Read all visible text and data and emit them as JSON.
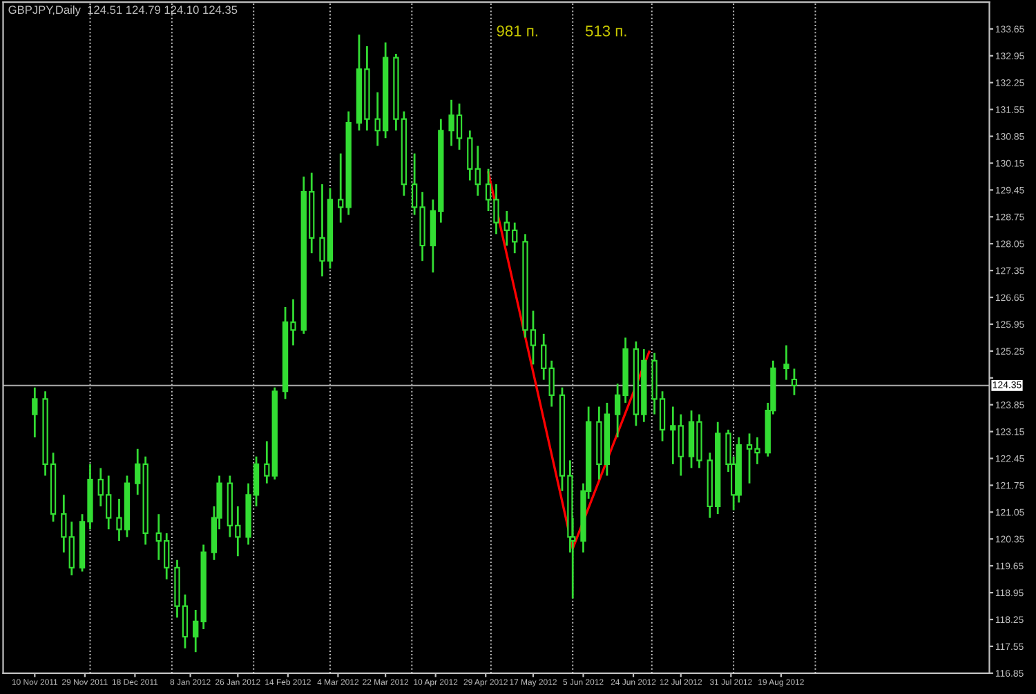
{
  "chart_data": {
    "type": "candlestick",
    "title": "GBPJPY,Daily  124.51 124.79 124.10 124.35",
    "x": [
      "2011-11-10",
      "2011-11-14",
      "2011-11-17",
      "2011-11-21",
      "2011-11-24",
      "2011-11-28",
      "2011-12-01",
      "2011-12-05",
      "2011-12-08",
      "2011-12-12",
      "2011-12-15",
      "2011-12-19",
      "2011-12-22",
      "2011-12-27",
      "2011-12-30",
      "2012-01-03",
      "2012-01-06",
      "2012-01-10",
      "2012-01-13",
      "2012-01-17",
      "2012-01-19",
      "2012-01-23",
      "2012-01-26",
      "2012-01-30",
      "2012-02-02",
      "2012-02-06",
      "2012-02-09",
      "2012-02-13",
      "2012-02-16",
      "2012-02-20",
      "2012-02-23",
      "2012-02-27",
      "2012-03-01",
      "2012-03-05",
      "2012-03-08",
      "2012-03-12",
      "2012-03-15",
      "2012-03-19",
      "2012-03-22",
      "2012-03-26",
      "2012-03-29",
      "2012-04-02",
      "2012-04-05",
      "2012-04-09",
      "2012-04-12",
      "2012-04-16",
      "2012-04-19",
      "2012-04-23",
      "2012-04-26",
      "2012-04-30",
      "2012-05-03",
      "2012-05-07",
      "2012-05-10",
      "2012-05-14",
      "2012-05-17",
      "2012-05-21",
      "2012-05-24",
      "2012-05-28",
      "2012-05-31",
      "2012-06-01",
      "2012-06-05",
      "2012-06-07",
      "2012-06-11",
      "2012-06-14",
      "2012-06-18",
      "2012-06-21",
      "2012-06-25",
      "2012-06-28",
      "2012-07-02",
      "2012-07-05",
      "2012-07-09",
      "2012-07-12",
      "2012-07-16",
      "2012-07-19",
      "2012-07-23",
      "2012-07-26",
      "2012-07-30",
      "2012-08-01",
      "2012-08-03",
      "2012-08-07",
      "2012-08-10",
      "2012-08-14",
      "2012-08-16",
      "2012-08-21",
      "2012-08-24"
    ],
    "ohlc": [
      [
        123.6,
        124.3,
        123.0,
        124.0
      ],
      [
        124.0,
        124.2,
        122.0,
        122.3
      ],
      [
        122.3,
        122.6,
        120.8,
        121.0
      ],
      [
        121.0,
        121.5,
        120.0,
        120.4
      ],
      [
        120.4,
        120.8,
        119.4,
        119.6
      ],
      [
        119.6,
        121.0,
        119.5,
        120.8
      ],
      [
        120.8,
        122.3,
        120.6,
        121.9
      ],
      [
        121.9,
        122.2,
        121.2,
        121.5
      ],
      [
        121.5,
        122.0,
        120.6,
        120.9
      ],
      [
        120.9,
        121.4,
        120.3,
        120.6
      ],
      [
        120.6,
        122.0,
        120.4,
        121.8
      ],
      [
        121.8,
        122.7,
        121.5,
        122.3
      ],
      [
        122.3,
        122.5,
        120.2,
        120.5
      ],
      [
        120.5,
        121.0,
        119.8,
        120.3
      ],
      [
        120.3,
        120.5,
        119.3,
        119.6
      ],
      [
        119.6,
        119.8,
        118.3,
        118.6
      ],
      [
        118.6,
        118.9,
        117.5,
        117.8
      ],
      [
        117.8,
        118.5,
        117.4,
        118.2
      ],
      [
        118.2,
        120.2,
        118.0,
        120.0
      ],
      [
        120.0,
        121.2,
        119.8,
        120.9
      ],
      [
        120.9,
        122.0,
        120.6,
        121.8
      ],
      [
        121.8,
        122.0,
        120.4,
        120.7
      ],
      [
        120.7,
        121.2,
        119.9,
        120.4
      ],
      [
        120.4,
        121.8,
        120.2,
        121.5
      ],
      [
        121.5,
        122.5,
        121.2,
        122.3
      ],
      [
        122.3,
        122.9,
        121.8,
        122.0
      ],
      [
        122.0,
        124.3,
        121.9,
        124.2
      ],
      [
        124.2,
        126.4,
        124.0,
        126.0
      ],
      [
        126.0,
        126.6,
        125.4,
        125.8
      ],
      [
        125.8,
        129.8,
        125.7,
        129.4
      ],
      [
        129.4,
        129.9,
        127.8,
        128.2
      ],
      [
        128.2,
        129.6,
        127.2,
        127.6
      ],
      [
        127.6,
        129.5,
        127.4,
        129.2
      ],
      [
        129.2,
        130.4,
        128.6,
        129.0
      ],
      [
        129.0,
        131.5,
        128.8,
        131.2
      ],
      [
        131.2,
        133.5,
        131.0,
        132.6
      ],
      [
        132.6,
        133.2,
        131.0,
        131.3
      ],
      [
        131.3,
        132.0,
        130.6,
        131.0
      ],
      [
        131.0,
        133.3,
        130.8,
        132.9
      ],
      [
        132.9,
        133.0,
        131.0,
        131.3
      ],
      [
        131.3,
        131.5,
        129.3,
        129.6
      ],
      [
        129.6,
        130.4,
        128.8,
        129.0
      ],
      [
        129.0,
        129.4,
        127.6,
        128.0
      ],
      [
        128.0,
        129.2,
        127.3,
        128.9
      ],
      [
        128.9,
        131.3,
        128.6,
        131.0
      ],
      [
        131.0,
        131.8,
        130.6,
        131.4
      ],
      [
        131.4,
        131.7,
        130.5,
        130.8
      ],
      [
        130.8,
        131.0,
        129.7,
        130.0
      ],
      [
        130.0,
        130.6,
        129.3,
        129.6
      ],
      [
        129.6,
        130.0,
        128.9,
        129.2
      ],
      [
        129.2,
        129.6,
        128.3,
        128.6
      ],
      [
        128.6,
        128.9,
        128.0,
        128.4
      ],
      [
        128.4,
        128.6,
        127.8,
        128.1
      ],
      [
        128.1,
        128.3,
        125.6,
        125.8
      ],
      [
        125.8,
        126.3,
        124.9,
        125.4
      ],
      [
        125.4,
        125.7,
        124.5,
        124.8
      ],
      [
        124.8,
        125.0,
        123.8,
        124.1
      ],
      [
        124.1,
        124.3,
        121.6,
        122.0
      ],
      [
        122.0,
        122.4,
        120.0,
        120.4
      ],
      [
        120.4,
        120.9,
        118.8,
        120.3
      ],
      [
        120.3,
        121.8,
        120.0,
        121.6
      ],
      [
        121.6,
        123.8,
        121.4,
        123.4
      ],
      [
        123.4,
        123.8,
        121.9,
        122.3
      ],
      [
        122.3,
        123.9,
        122.0,
        123.6
      ],
      [
        123.6,
        124.4,
        123.0,
        124.1
      ],
      [
        124.1,
        125.6,
        123.9,
        125.3
      ],
      [
        125.3,
        125.5,
        123.3,
        123.6
      ],
      [
        123.6,
        125.3,
        123.4,
        125.0
      ],
      [
        125.0,
        125.2,
        123.6,
        124.0
      ],
      [
        124.0,
        124.2,
        122.9,
        123.2
      ],
      [
        123.2,
        123.8,
        122.3,
        123.3
      ],
      [
        123.3,
        123.6,
        122.0,
        122.5
      ],
      [
        122.5,
        123.7,
        122.2,
        123.4
      ],
      [
        123.4,
        123.6,
        122.2,
        122.4
      ],
      [
        122.4,
        122.6,
        120.9,
        121.2
      ],
      [
        121.2,
        123.4,
        121.0,
        123.1
      ],
      [
        123.1,
        123.2,
        122.1,
        122.3
      ],
      [
        122.3,
        122.5,
        121.1,
        121.5
      ],
      [
        121.5,
        123.0,
        121.3,
        122.8
      ],
      [
        122.8,
        123.1,
        121.8,
        122.7
      ],
      [
        122.7,
        123.0,
        122.3,
        122.6
      ],
      [
        122.6,
        123.9,
        122.5,
        123.7
      ],
      [
        123.7,
        125.0,
        123.6,
        124.8
      ],
      [
        124.8,
        125.4,
        124.5,
        124.9
      ],
      [
        124.51,
        124.79,
        124.1,
        124.35
      ]
    ],
    "color": "#33dd33",
    "series": [
      {
        "type": "line",
        "color": "#ff0000",
        "x": [
          "2012-04-30",
          "2012-06-01",
          "2012-06-30"
        ],
        "values": [
          129.91,
          120.1,
          125.23
        ]
      }
    ],
    "annotations": [
      "981 п.",
      "513 п."
    ],
    "ref_lines": [
      {
        "axis": "y",
        "value": 124.35,
        "label": "124.35",
        "color": "#a0a0a0"
      },
      {
        "axis": "x",
        "value": "2011-12-01",
        "color": "#c8c8c8",
        "line_style": "dotted"
      },
      {
        "axis": "x",
        "value": "2012-01-01",
        "color": "#c8c8c8",
        "line_style": "dotted"
      },
      {
        "axis": "x",
        "value": "2012-02-01",
        "color": "#c8c8c8",
        "line_style": "dotted"
      },
      {
        "axis": "x",
        "value": "2012-03-01",
        "color": "#c8c8c8",
        "line_style": "dotted"
      },
      {
        "axis": "x",
        "value": "2012-04-01",
        "color": "#c8c8c8",
        "line_style": "dotted"
      },
      {
        "axis": "x",
        "value": "2012-05-01",
        "color": "#c8c8c8",
        "line_style": "dotted"
      },
      {
        "axis": "x",
        "value": "2012-06-01",
        "color": "#c8c8c8",
        "line_style": "dotted"
      },
      {
        "axis": "x",
        "value": "2012-07-01",
        "color": "#c8c8c8",
        "line_style": "dotted"
      },
      {
        "axis": "x",
        "value": "2012-08-01",
        "color": "#c8c8c8",
        "line_style": "dotted"
      },
      {
        "axis": "x",
        "value": "2012-09-01",
        "color": "#c8c8c8",
        "line_style": "dotted"
      }
    ],
    "xlim": [
      "2011-10-29",
      "2012-11-06"
    ],
    "xticks": [
      {
        "value": "2011-11-10",
        "label": "10 Nov 2011"
      },
      {
        "value": "2011-11-29",
        "label": "29 Nov 2011"
      },
      {
        "value": "2011-12-18",
        "label": "18 Dec 2011"
      },
      {
        "value": "2012-01-08",
        "label": "8 Jan 2012"
      },
      {
        "value": "2012-01-26",
        "label": "26 Jan 2012"
      },
      {
        "value": "2012-02-14",
        "label": "14 Feb 2012"
      },
      {
        "value": "2012-03-04",
        "label": "4 Mar 2012"
      },
      {
        "value": "2012-03-22",
        "label": "22 Mar 2012"
      },
      {
        "value": "2012-04-10",
        "label": "10 Apr 2012"
      },
      {
        "value": "2012-04-29",
        "label": "29 Apr 2012"
      },
      {
        "value": "2012-05-17",
        "label": "17 May 2012"
      },
      {
        "value": "2012-06-05",
        "label": "5 Jun 2012"
      },
      {
        "value": "2012-06-24",
        "label": "24 Jun 2012"
      },
      {
        "value": "2012-07-12",
        "label": "12 Jul 2012"
      },
      {
        "value": "2012-07-31",
        "label": "31 Jul 2012"
      },
      {
        "value": "2012-08-19",
        "label": "19 Aug 2012"
      }
    ],
    "ylim": [
      116.85,
      134.35
    ],
    "yticks": [
      116.85,
      117.55,
      118.25,
      118.95,
      119.65,
      120.35,
      121.05,
      121.75,
      122.45,
      123.15,
      123.85,
      {
        "value": 124.55,
        "label": null
      },
      125.25,
      125.95,
      126.65,
      127.35,
      128.05,
      128.75,
      129.45,
      130.15,
      130.85,
      131.55,
      132.25,
      132.95,
      133.65
    ],
    "grid": false
  }
}
